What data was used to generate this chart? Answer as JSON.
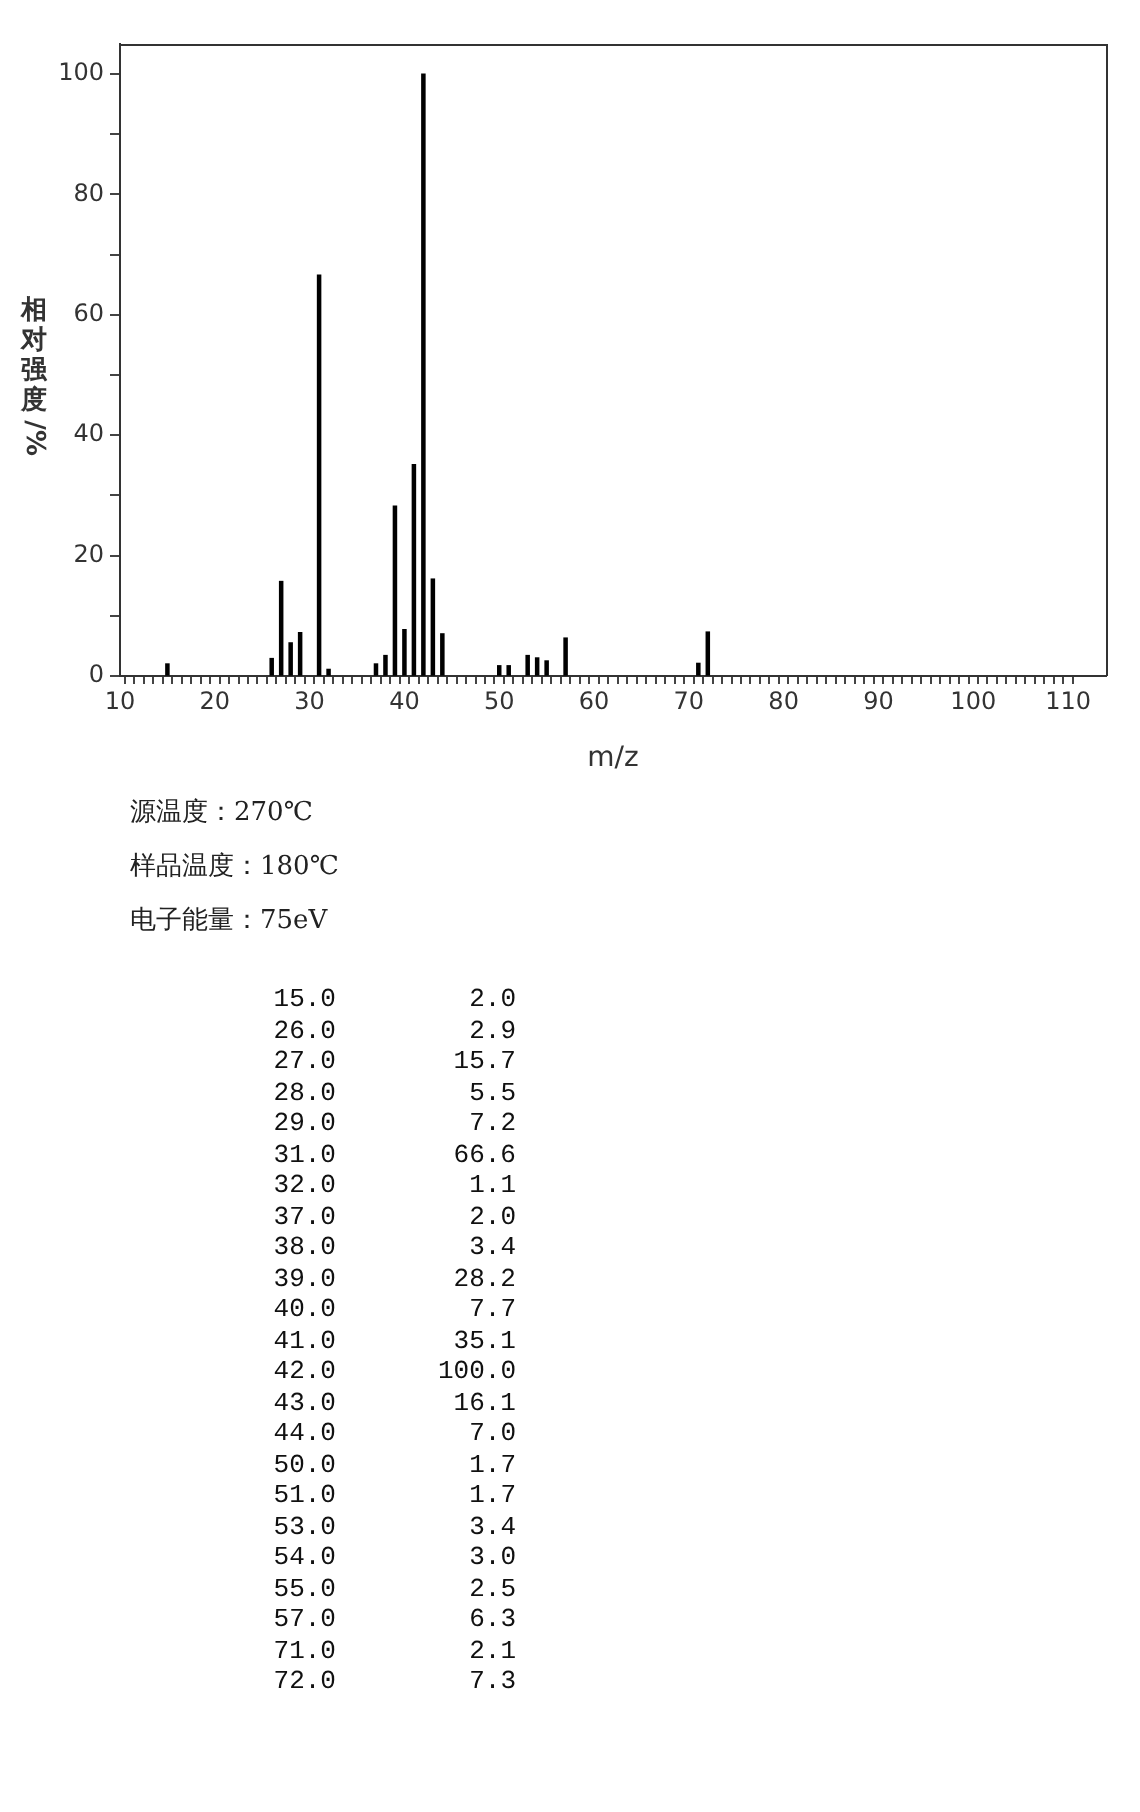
{
  "chart_data": {
    "type": "bar",
    "xlabel": "m/z",
    "ylabel": "相对强度/%",
    "x": [
      15,
      26,
      27,
      28,
      29,
      31,
      32,
      37,
      38,
      39,
      40,
      41,
      42,
      43,
      44,
      50,
      51,
      53,
      54,
      55,
      57,
      71,
      72
    ],
    "values": [
      2.0,
      2.9,
      15.7,
      5.5,
      7.2,
      66.6,
      1.1,
      2.0,
      3.4,
      28.2,
      7.7,
      35.1,
      100.0,
      16.1,
      7.0,
      1.7,
      1.7,
      3.4,
      3.0,
      2.5,
      6.3,
      2.1,
      7.3
    ],
    "color": "#000000",
    "xlim": [
      10,
      114
    ],
    "ylim": [
      0,
      105
    ],
    "xticks": [
      10,
      {
        "value": 11,
        "label": null
      },
      {
        "value": 12,
        "label": null
      },
      {
        "value": 13,
        "label": null
      },
      {
        "value": 14,
        "label": null
      },
      {
        "value": 15,
        "label": null
      },
      {
        "value": 16,
        "label": null
      },
      {
        "value": 17,
        "label": null
      },
      {
        "value": 18,
        "label": null
      },
      {
        "value": 19,
        "label": null
      },
      20,
      {
        "value": 21,
        "label": null
      },
      {
        "value": 22,
        "label": null
      },
      {
        "value": 23,
        "label": null
      },
      {
        "value": 24,
        "label": null
      },
      {
        "value": 25,
        "label": null
      },
      {
        "value": 26,
        "label": null
      },
      {
        "value": 27,
        "label": null
      },
      {
        "value": 28,
        "label": null
      },
      {
        "value": 29,
        "label": null
      },
      30,
      {
        "value": 31,
        "label": null
      },
      {
        "value": 32,
        "label": null
      },
      {
        "value": 33,
        "label": null
      },
      {
        "value": 34,
        "label": null
      },
      {
        "value": 35,
        "label": null
      },
      {
        "value": 36,
        "label": null
      },
      {
        "value": 37,
        "label": null
      },
      {
        "value": 38,
        "label": null
      },
      {
        "value": 39,
        "label": null
      },
      40,
      {
        "value": 41,
        "label": null
      },
      {
        "value": 42,
        "label": null
      },
      {
        "value": 43,
        "label": null
      },
      {
        "value": 44,
        "label": null
      },
      {
        "value": 45,
        "label": null
      },
      {
        "value": 46,
        "label": null
      },
      {
        "value": 47,
        "label": null
      },
      {
        "value": 48,
        "label": null
      },
      {
        "value": 49,
        "label": null
      },
      50,
      {
        "value": 51,
        "label": null
      },
      {
        "value": 52,
        "label": null
      },
      {
        "value": 53,
        "label": null
      },
      {
        "value": 54,
        "label": null
      },
      {
        "value": 55,
        "label": null
      },
      {
        "value": 56,
        "label": null
      },
      {
        "value": 57,
        "label": null
      },
      {
        "value": 58,
        "label": null
      },
      {
        "value": 59,
        "label": null
      },
      60,
      {
        "value": 61,
        "label": null
      },
      {
        "value": 62,
        "label": null
      },
      {
        "value": 63,
        "label": null
      },
      {
        "value": 64,
        "label": null
      },
      {
        "value": 65,
        "label": null
      },
      {
        "value": 66,
        "label": null
      },
      {
        "value": 67,
        "label": null
      },
      {
        "value": 68,
        "label": null
      },
      {
        "value": 69,
        "label": null
      },
      70,
      {
        "value": 71,
        "label": null
      },
      {
        "value": 72,
        "label": null
      },
      {
        "value": 73,
        "label": null
      },
      {
        "value": 74,
        "label": null
      },
      {
        "value": 75,
        "label": null
      },
      {
        "value": 76,
        "label": null
      },
      {
        "value": 77,
        "label": null
      },
      {
        "value": 78,
        "label": null
      },
      {
        "value": 79,
        "label": null
      },
      80,
      {
        "value": 81,
        "label": null
      },
      {
        "value": 82,
        "label": null
      },
      {
        "value": 83,
        "label": null
      },
      {
        "value": 84,
        "label": null
      },
      {
        "value": 85,
        "label": null
      },
      {
        "value": 86,
        "label": null
      },
      {
        "value": 87,
        "label": null
      },
      {
        "value": 88,
        "label": null
      },
      {
        "value": 89,
        "label": null
      },
      90,
      {
        "value": 91,
        "label": null
      },
      {
        "value": 92,
        "label": null
      },
      {
        "value": 93,
        "label": null
      },
      {
        "value": 94,
        "label": null
      },
      {
        "value": 95,
        "label": null
      },
      {
        "value": 96,
        "label": null
      },
      {
        "value": 97,
        "label": null
      },
      {
        "value": 98,
        "label": null
      },
      {
        "value": 99,
        "label": null
      },
      100,
      {
        "value": 101,
        "label": null
      },
      {
        "value": 102,
        "label": null
      },
      {
        "value": 103,
        "label": null
      },
      {
        "value": 104,
        "label": null
      },
      {
        "value": 105,
        "label": null
      },
      {
        "value": 106,
        "label": null
      },
      {
        "value": 107,
        "label": null
      },
      {
        "value": 108,
        "label": null
      },
      {
        "value": 109,
        "label": null
      },
      110
    ],
    "yticks": [
      0,
      {
        "value": 10,
        "label": null
      },
      20,
      {
        "value": 30,
        "label": null
      },
      40,
      {
        "value": 50,
        "label": null
      },
      60,
      {
        "value": 70,
        "label": null
      },
      80,
      {
        "value": 90,
        "label": null
      },
      100
    ],
    "annotations": [
      "源温度：270℃",
      "样品温度：180℃",
      "电子能量：75eV",
      "15.0",
      "2.0",
      "26.0",
      "2.9",
      "27.0",
      "15.7",
      "28.0",
      "5.5",
      "29.0",
      "7.2",
      "31.0",
      "66.6",
      "32.0",
      "1.1",
      "37.0",
      "2.0",
      "38.0",
      "3.4",
      "39.0",
      "28.2",
      "40.0",
      "7.7",
      "41.0",
      "35.1",
      "42.0",
      "100.0",
      "43.0",
      "16.1",
      "44.0",
      "7.0",
      "50.0",
      "1.7",
      "51.0",
      "1.7",
      "53.0",
      "3.4",
      "54.0",
      "3.0",
      "55.0",
      "2.5",
      "57.0",
      "6.3",
      "71.0",
      "2.1",
      "72.0",
      "7.3"
    ],
    "grid": false,
    "legend": false
  }
}
